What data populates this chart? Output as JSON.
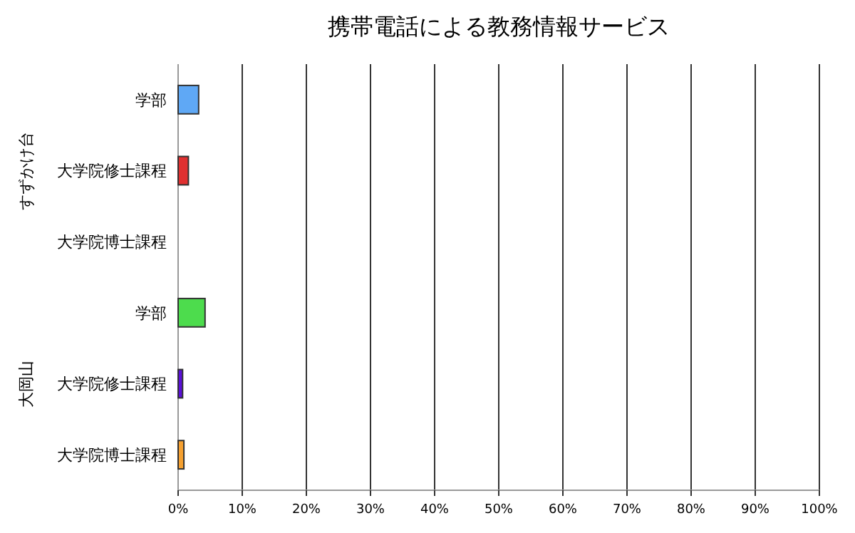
{
  "chart_data": {
    "type": "bar",
    "orientation": "horizontal",
    "title": "携帯電話による教務情報サービス",
    "categories": [
      "学部",
      "大学院修士課程",
      "大学院博士課程",
      "学部",
      "大学院修士課程",
      "大学院博士課程"
    ],
    "values": [
      3.2,
      1.6,
      0,
      4.2,
      0.7,
      0.9
    ],
    "colors": [
      "#5fa8f5",
      "#e03030",
      "#999999",
      "#4ddc4d",
      "#5a10d8",
      "#f5a030"
    ],
    "annotations": [
      "すずかけ台",
      "大岡山"
    ],
    "xlim": [
      0,
      100
    ],
    "xticks": [
      {
        "value": 0,
        "label": "0%"
      },
      {
        "value": 10,
        "label": "10%"
      },
      {
        "value": 20,
        "label": "20%"
      },
      {
        "value": 30,
        "label": "30%"
      },
      {
        "value": 40,
        "label": "40%"
      },
      {
        "value": 50,
        "label": "50%"
      },
      {
        "value": 60,
        "label": "60%"
      },
      {
        "value": 70,
        "label": "70%"
      },
      {
        "value": 80,
        "label": "80%"
      },
      {
        "value": 90,
        "label": "90%"
      },
      {
        "value": 100,
        "label": "100%"
      }
    ],
    "grid": "x"
  }
}
